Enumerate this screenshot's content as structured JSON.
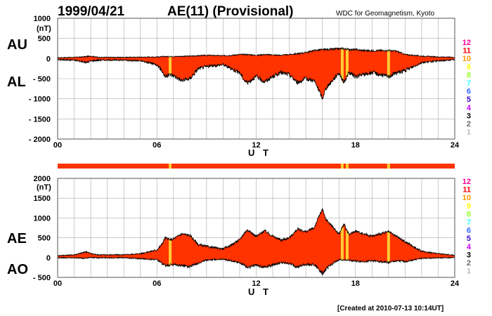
{
  "header": {
    "date": "1999/04/21",
    "title": "AE(11) (Provisional)",
    "source": "WDC for Geomagnetism, Kyoto"
  },
  "footer": {
    "created": "[Created at 2010-07-13 10:14UT]"
  },
  "colors": {
    "fill": "#ff3300",
    "quality_bar": "#ff3300",
    "highlight": "#ffcc33",
    "line": "#000000",
    "grid": "#aaaaaa"
  },
  "quality_scale": [
    {
      "label": "12",
      "color": "#ff0099"
    },
    {
      "label": "11",
      "color": "#ff0000"
    },
    {
      "label": "10",
      "color": "#ff9900"
    },
    {
      "label": "9",
      "color": "#ffff00"
    },
    {
      "label": "8",
      "color": "#99ff33"
    },
    {
      "label": "7",
      "color": "#33ffff"
    },
    {
      "label": "6",
      "color": "#3366ff"
    },
    {
      "label": "5",
      "color": "#3300cc"
    },
    {
      "label": "4",
      "color": "#cc00ff"
    },
    {
      "label": "3",
      "color": "#000000"
    },
    {
      "label": "2",
      "color": "#666666"
    },
    {
      "label": "1",
      "color": "#bbbbbb"
    }
  ],
  "chart_data": [
    {
      "type": "area",
      "panel": "upper",
      "series_labels": [
        "AU",
        "AL"
      ],
      "unit": "(nT)",
      "xlabel": "U T",
      "xlim": [
        0,
        24
      ],
      "x_ticks": [
        "00",
        "06",
        "12",
        "18",
        "24"
      ],
      "ylim": [
        -2000,
        1000
      ],
      "y_ticks": [
        "1000",
        "500",
        "0",
        "- 500",
        "- 1000",
        "- 1500",
        "- 2000"
      ],
      "grid": true,
      "highlight_hours": [
        6.8,
        17.2,
        17.5,
        20.0
      ],
      "AU": {
        "x": [
          0,
          1,
          1.5,
          2,
          2.5,
          4,
          6,
          6.5,
          7,
          8,
          9,
          10,
          10.5,
          11,
          11.5,
          12,
          12.5,
          13,
          13.5,
          14,
          14.5,
          15,
          15.5,
          16,
          16.5,
          17,
          17.2,
          17.5,
          18,
          18.5,
          19,
          19.5,
          20,
          20.5,
          21,
          21.5,
          22,
          23,
          24
        ],
        "y": [
          20,
          30,
          40,
          60,
          30,
          30,
          40,
          50,
          50,
          60,
          80,
          70,
          80,
          100,
          100,
          80,
          100,
          90,
          80,
          100,
          120,
          150,
          200,
          220,
          230,
          240,
          250,
          230,
          220,
          200,
          190,
          200,
          200,
          180,
          100,
          80,
          60,
          40,
          30
        ]
      },
      "AL": {
        "x": [
          0,
          1,
          1.5,
          1.75,
          2,
          2.5,
          3,
          4,
          5,
          6,
          6.3,
          6.5,
          6.8,
          7,
          7.5,
          8,
          8.5,
          9,
          10,
          10.5,
          11,
          11.3,
          11.5,
          11.8,
          12,
          12.5,
          13,
          13.5,
          14,
          14.5,
          15,
          15.5,
          15.8,
          16,
          16.2,
          16.5,
          17,
          17.3,
          17.6,
          18,
          18.5,
          19,
          19.5,
          20,
          20.5,
          21,
          21.5,
          22,
          23,
          24
        ],
        "y": [
          -30,
          -40,
          -80,
          -100,
          -60,
          -40,
          -40,
          -40,
          -60,
          -150,
          -300,
          -450,
          -400,
          -420,
          -550,
          -500,
          -250,
          -200,
          -150,
          -250,
          -350,
          -550,
          -600,
          -500,
          -450,
          -580,
          -450,
          -350,
          -400,
          -600,
          -500,
          -550,
          -800,
          -1000,
          -750,
          -600,
          -350,
          -600,
          -350,
          -450,
          -400,
          -350,
          -400,
          -450,
          -350,
          -300,
          -200,
          -100,
          -60,
          -30
        ]
      }
    },
    {
      "type": "area",
      "panel": "lower",
      "series_labels": [
        "AE",
        "AO"
      ],
      "unit": "(nT)",
      "xlabel": "U T",
      "xlim": [
        0,
        24
      ],
      "x_ticks": [
        "00",
        "06",
        "12",
        "18",
        "24"
      ],
      "ylim": [
        -500,
        2000
      ],
      "y_ticks": [
        "2000",
        "1500",
        "1000",
        "500",
        "0",
        "- 500"
      ],
      "grid": true,
      "highlight_hours": [
        6.8,
        17.2,
        17.5,
        20.0
      ],
      "AE": {
        "x": [
          0,
          1,
          1.5,
          1.75,
          2,
          2.5,
          3,
          4,
          5,
          6,
          6.3,
          6.5,
          6.8,
          7,
          7.5,
          8,
          8.5,
          9,
          10,
          10.5,
          11,
          11.3,
          11.5,
          11.8,
          12,
          12.5,
          13,
          13.5,
          14,
          14.5,
          15,
          15.5,
          15.8,
          16,
          16.2,
          16.5,
          17,
          17.3,
          17.6,
          18,
          18.5,
          19,
          19.5,
          20,
          20.5,
          21,
          21.5,
          22,
          23,
          24
        ],
        "y": [
          50,
          70,
          120,
          150,
          100,
          70,
          70,
          70,
          100,
          190,
          340,
          500,
          450,
          470,
          600,
          560,
          330,
          280,
          220,
          320,
          450,
          630,
          700,
          600,
          530,
          680,
          540,
          440,
          500,
          720,
          650,
          750,
          1050,
          1220,
          970,
          840,
          590,
          850,
          580,
          670,
          600,
          540,
          600,
          650,
          530,
          400,
          280,
          160,
          100,
          60
        ]
      },
      "AO": {
        "x": [
          0,
          1,
          1.5,
          2,
          2.5,
          4,
          6,
          6.5,
          7,
          8,
          9,
          10,
          10.5,
          11,
          11.5,
          12,
          12.5,
          13,
          13.5,
          14,
          14.5,
          15,
          15.5,
          16,
          16.5,
          17,
          17.5,
          18,
          18.5,
          19,
          19.5,
          20,
          20.5,
          21,
          22,
          23,
          24
        ],
        "y": [
          -5,
          -5,
          -20,
          0,
          -5,
          -5,
          -55,
          -200,
          -185,
          -220,
          -60,
          -40,
          -85,
          -125,
          -250,
          -185,
          -240,
          -180,
          -135,
          -150,
          -240,
          -175,
          -175,
          -390,
          -185,
          -55,
          -60,
          -90,
          -100,
          -80,
          -100,
          -125,
          -85,
          -100,
          -20,
          -10,
          0
        ]
      }
    }
  ]
}
